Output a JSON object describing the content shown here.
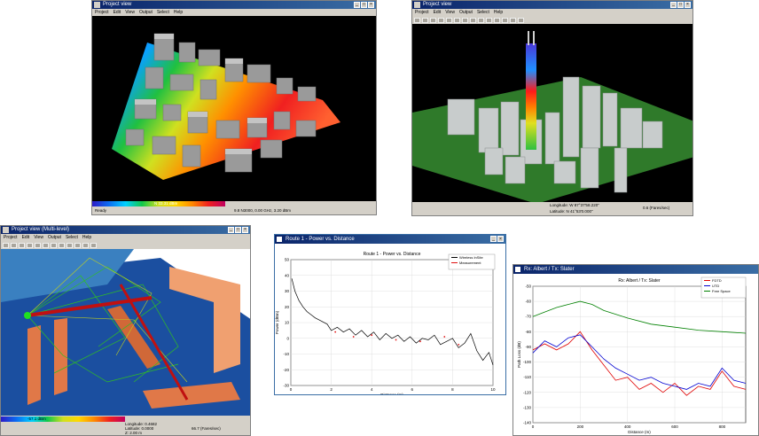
{
  "win1": {
    "title": "Project view",
    "menu": [
      "Project",
      "Edit",
      "View",
      "Output",
      "Select",
      "Help"
    ],
    "status_left": "Ready",
    "legend_caption": "N 33.31 dBm",
    "status_right": "9.8 N3000, 0.00 GHz, 3.20 dBm"
  },
  "win2": {
    "title": "Project view",
    "menu": [
      "Project",
      "Edit",
      "View",
      "Output",
      "Select",
      "Help"
    ],
    "coords_1": "Longitude: W 87°37'58.220\"",
    "coords_2": "Latitude: N 41°53'0.000\"",
    "zoom": "0.6 (Fares/sec)"
  },
  "win3": {
    "title": "Project view (Multi-level)",
    "menu": [
      "Project",
      "Edit",
      "View",
      "Output",
      "Select",
      "Help"
    ],
    "legend_caption": "-57.1 dBm",
    "coord_1": "Longitude: 0.4682",
    "coord_2": "Latitude: 0.0000",
    "coord_3": "Z: 2.00 m",
    "fps": "66.7 (Fares/sec)"
  },
  "win4": {
    "title": "Route 1 - Power vs. Distance",
    "chart_data": {
      "type": "line",
      "title": "Route 1 - Power vs. Distance",
      "xlabel": "Distance (m)",
      "ylabel": "Power (dBm)",
      "xlim": [
        0,
        10
      ],
      "ylim": [
        -30,
        50
      ],
      "x_ticks": [
        0,
        2,
        4,
        6,
        8,
        10
      ],
      "y_ticks": [
        50,
        40,
        30,
        20,
        10,
        0,
        -10,
        -20,
        -30
      ],
      "grid": true,
      "legend_position": "top-right",
      "series": [
        {
          "name": "Wireless InSite",
          "color": "#000000",
          "x": [
            0.05,
            0.2,
            0.4,
            0.6,
            0.8,
            1.0,
            1.2,
            1.5,
            1.8,
            2.0,
            2.3,
            2.6,
            2.9,
            3.2,
            3.5,
            3.8,
            4.1,
            4.4,
            4.7,
            5.0,
            5.3,
            5.6,
            5.9,
            6.2,
            6.5,
            6.8,
            7.1,
            7.4,
            7.7,
            8.0,
            8.3,
            8.6,
            8.9,
            9.2,
            9.5,
            9.8,
            10.0
          ],
          "y": [
            38,
            30,
            24,
            20,
            17,
            15,
            13,
            11,
            9,
            5,
            7,
            4,
            6,
            2,
            5,
            1,
            4,
            -1,
            3,
            0,
            2,
            -2,
            1,
            -3,
            0,
            -1,
            2,
            -4,
            -2,
            0,
            -6,
            -3,
            3,
            -8,
            -14,
            -9,
            -17
          ]
        },
        {
          "name": "Measurement",
          "color": "#e01010",
          "x": [
            2.2,
            3.1,
            4.0,
            5.2,
            6.4,
            7.6,
            8.3
          ],
          "y": [
            4,
            1,
            2,
            -1,
            -2,
            1,
            -4
          ]
        }
      ]
    }
  },
  "win5": {
    "title": "Rx: Albert / Tx: Slater",
    "chart_data": {
      "type": "line",
      "title": "Rx: Albert / Tx: Slater",
      "xlabel": "Distance (m)",
      "ylabel": "Path Loss (dB)",
      "xlim": [
        0,
        900
      ],
      "ylim": [
        -140,
        -50
      ],
      "x_ticks": [
        0,
        200,
        400,
        600,
        800
      ],
      "y_ticks": [
        -50,
        -60,
        -70,
        -80,
        -90,
        -100,
        -110,
        -120,
        -130,
        -140
      ],
      "grid": true,
      "legend_position": "top-right",
      "series": [
        {
          "name": "FDTD",
          "color": "#e00000",
          "x": [
            0,
            50,
            100,
            150,
            200,
            250,
            300,
            350,
            400,
            450,
            500,
            550,
            600,
            650,
            700,
            750,
            800,
            850,
            900
          ],
          "y": [
            -92,
            -88,
            -92,
            -88,
            -80,
            -92,
            -102,
            -112,
            -110,
            -118,
            -114,
            -120,
            -114,
            -122,
            -116,
            -118,
            -106,
            -116,
            -118
          ]
        },
        {
          "name": "UTD",
          "color": "#0000d0",
          "x": [
            0,
            50,
            100,
            150,
            200,
            250,
            300,
            350,
            400,
            450,
            500,
            550,
            600,
            650,
            700,
            750,
            800,
            850,
            900
          ],
          "y": [
            -94,
            -86,
            -90,
            -84,
            -82,
            -90,
            -98,
            -104,
            -108,
            -112,
            -110,
            -114,
            -116,
            -118,
            -114,
            -116,
            -104,
            -112,
            -114
          ]
        },
        {
          "name": "Free Space",
          "color": "#008000",
          "x": [
            0,
            50,
            100,
            150,
            200,
            250,
            300,
            400,
            500,
            600,
            700,
            800,
            900
          ],
          "y": [
            -70,
            -67,
            -64,
            -62,
            -60,
            -62,
            -66,
            -71,
            -75,
            -77,
            -79,
            -80,
            -81
          ]
        }
      ]
    }
  }
}
